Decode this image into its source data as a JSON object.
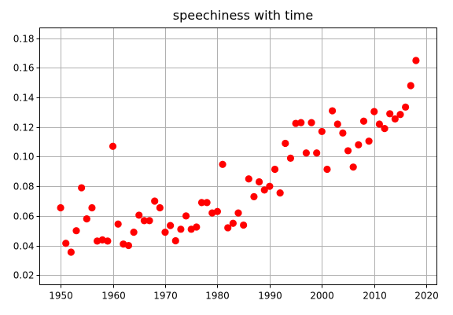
{
  "chart_data": {
    "type": "scatter",
    "title": "speechiness with time",
    "xlabel": "",
    "ylabel": "",
    "xlim": [
      1946,
      2022
    ],
    "ylim": [
      0.0135,
      0.187
    ],
    "xticks": [
      1950,
      1960,
      1970,
      1980,
      1990,
      2000,
      2010,
      2020
    ],
    "yticks": [
      0.02,
      0.04,
      0.06,
      0.08,
      0.1,
      0.12,
      0.14,
      0.16,
      0.18
    ],
    "ytick_labels": [
      "0.02",
      "0.04",
      "0.06",
      "0.08",
      "0.10",
      "0.12",
      "0.14",
      "0.16",
      "0.18"
    ],
    "grid": true,
    "marker_color": "#ff0000",
    "x": [
      1950,
      1951,
      1952,
      1953,
      1954,
      1955,
      1956,
      1957,
      1958,
      1959,
      1960,
      1961,
      1962,
      1963,
      1964,
      1965,
      1966,
      1967,
      1968,
      1969,
      1970,
      1971,
      1972,
      1973,
      1974,
      1975,
      1976,
      1977,
      1978,
      1979,
      1980,
      1981,
      1982,
      1983,
      1984,
      1985,
      1986,
      1987,
      1988,
      1989,
      1990,
      1991,
      1992,
      1993,
      1994,
      1995,
      1996,
      1997,
      1998,
      1999,
      2000,
      2001,
      2002,
      2003,
      2004,
      2005,
      2006,
      2007,
      2008,
      2009,
      2010,
      2011,
      2012,
      2013,
      2014,
      2015,
      2016,
      2017,
      2018
    ],
    "y": [
      0.0655,
      0.0415,
      0.0355,
      0.05,
      0.079,
      0.058,
      0.0655,
      0.043,
      0.0438,
      0.043,
      0.107,
      0.0545,
      0.041,
      0.04,
      0.049,
      0.0605,
      0.0568,
      0.0568,
      0.07,
      0.0655,
      0.049,
      0.0535,
      0.0432,
      0.051,
      0.06,
      0.051,
      0.0525,
      0.069,
      0.069,
      0.062,
      0.063,
      0.0948,
      0.052,
      0.055,
      0.062,
      0.0538,
      0.085,
      0.073,
      0.083,
      0.0775,
      0.08,
      0.0915,
      0.0755,
      0.109,
      0.099,
      0.1225,
      0.123,
      0.1025,
      0.123,
      0.1025,
      0.117,
      0.0915,
      0.131,
      0.122,
      0.116,
      0.104,
      0.093,
      0.108,
      0.124,
      0.1105,
      0.1305,
      0.122,
      0.119,
      0.129,
      0.1255,
      0.1285,
      0.1335,
      0.148,
      0.165
    ]
  }
}
